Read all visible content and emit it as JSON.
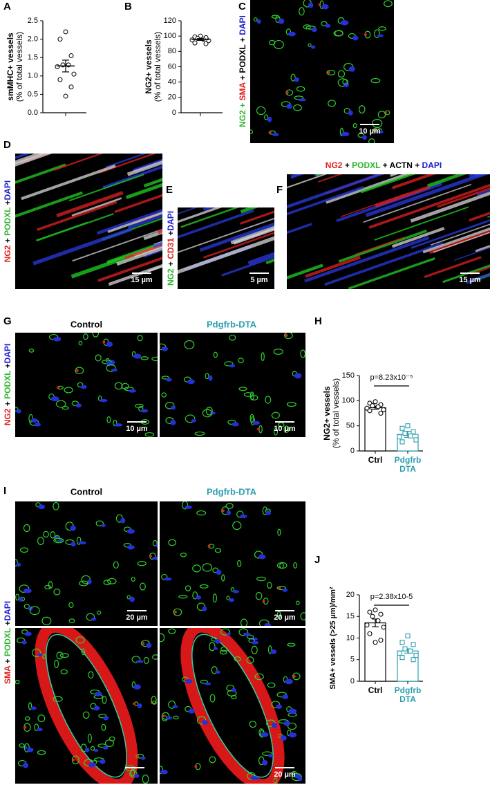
{
  "letters": [
    "A",
    "B",
    "C",
    "D",
    "E",
    "F",
    "G",
    "H",
    "I",
    "J"
  ],
  "chart_data": [
    {
      "type": "dot",
      "ylabel": [
        "smMHC+ vessels",
        "(% of total vessels)"
      ],
      "ylim": [
        0,
        2.5
      ],
      "yticks": [
        {
          "value": 0,
          "label": "0.0"
        },
        0.5,
        {
          "value": 1,
          "label": "1.0"
        },
        1.5,
        {
          "value": 2,
          "label": "2.0"
        },
        2.5
      ],
      "values": [
        2.2,
        2.0,
        1.55,
        1.3,
        1.3,
        1.25,
        1.05,
        0.9,
        0.7,
        0.45
      ],
      "mean": 1.27,
      "sem": 0.16,
      "color": "#000000"
    },
    {
      "type": "dot",
      "ylabel": [
        "NG2+ vessels",
        "(% of total vessels)"
      ],
      "ylim": [
        0,
        120
      ],
      "yticks": [
        0,
        20,
        40,
        60,
        80,
        100,
        120
      ],
      "values": [
        100,
        99,
        98,
        97,
        96,
        95,
        94,
        91,
        90
      ],
      "mean": 95.6,
      "sem": 1.2,
      "color": "#000000"
    },
    {
      "type": "bar",
      "ylabel": [
        "NG2+ vessels",
        "(% of total vessels)"
      ],
      "ylim": [
        0,
        150
      ],
      "yticks": [
        0,
        50,
        100,
        150
      ],
      "categories": [
        "Ctrl",
        "Pdgfrb DTA"
      ],
      "colors": [
        "#000000",
        "#2a9db0"
      ],
      "values": [
        86,
        33
      ],
      "sem": [
        3,
        6
      ],
      "points": [
        [
          98,
          95,
          92,
          90,
          88,
          85,
          82,
          80,
          75
        ],
        [
          50,
          45,
          38,
          35,
          30,
          28,
          22,
          18
        ]
      ],
      "annotation": "p=8.23x10⁻⁵"
    },
    {
      "type": "bar",
      "ylabel": "SMA+ vessels (>25 µm)/mm²",
      "ylim": [
        0,
        20
      ],
      "yticks": [
        0,
        5,
        10,
        15,
        20
      ],
      "categories": [
        "Ctrl",
        "Pdgfrb DTA"
      ],
      "colors": [
        "#000000",
        "#2a9db0"
      ],
      "values": [
        13.5,
        7
      ],
      "sem": [
        0.9,
        0.5
      ],
      "points": [
        [
          16.5,
          16,
          15.5,
          15,
          14,
          13,
          12.5,
          11,
          9.5,
          9
        ],
        [
          10.5,
          9,
          8.5,
          7.5,
          7,
          6.5,
          6,
          5.5,
          5
        ]
      ],
      "annotation": "p=2.38x10-5"
    }
  ],
  "images": [
    {
      "stain": [
        {
          "text": "NG2 + ",
          "color": "#2db52d"
        },
        {
          "text": "SMA",
          "color": "#e0201b"
        },
        {
          "text": " + PODXL + ",
          "color": "#000000"
        },
        {
          "text": "DAPI",
          "color": "#1a1ad0"
        }
      ],
      "scales": [
        "10 µm"
      ]
    },
    {
      "stain": [
        {
          "text": "NG2",
          "color": "#e0201b"
        },
        {
          "text": " + ",
          "color": "#000000"
        },
        {
          "text": "PODXL",
          "color": "#2db52d"
        },
        {
          "text": " +",
          "color": "#000000"
        },
        {
          "text": "DAPI",
          "color": "#1a1ad0"
        }
      ],
      "scales": [
        "15 µm"
      ]
    },
    {
      "stain": [
        {
          "text": "NG2",
          "color": "#2db52d"
        },
        {
          "text": " + ",
          "color": "#000000"
        },
        {
          "text": "CD31",
          "color": "#e0201b"
        },
        {
          "text": " +",
          "color": "#000000"
        },
        {
          "text": "DAPI",
          "color": "#1a1ad0"
        }
      ],
      "scales": [
        "5 µm"
      ]
    },
    {
      "stain": [
        {
          "text": "NG2",
          "color": "#e0201b"
        },
        {
          "text": " + ",
          "color": "#000000"
        },
        {
          "text": "PODXL",
          "color": "#2db52d"
        },
        {
          "text": " + ACTN + ",
          "color": "#000000"
        },
        {
          "text": "DAPI",
          "color": "#1a1ad0"
        }
      ],
      "scales": [
        "15 µm"
      ]
    },
    {
      "columns": [
        "Control",
        "Pdgfrb-DTA"
      ],
      "column_colors": [
        "#000000",
        "#2a9db0"
      ],
      "stain": [
        {
          "text": "NG2",
          "color": "#e0201b"
        },
        {
          "text": " + ",
          "color": "#000000"
        },
        {
          "text": "PODXL",
          "color": "#2db52d"
        },
        {
          "text": " +",
          "color": "#000000"
        },
        {
          "text": "DAPI",
          "color": "#1a1ad0"
        }
      ],
      "scales": [
        "10 µm",
        "10 µm"
      ]
    },
    {
      "columns": [
        "Control",
        "Pdgfrb-DTA"
      ],
      "column_colors": [
        "#000000",
        "#2a9db0"
      ],
      "stain": [
        {
          "text": "SMA",
          "color": "#e0201b"
        },
        {
          "text": " + ",
          "color": "#000000"
        },
        {
          "text": "PODXL",
          "color": "#2db52d"
        },
        {
          "text": " +",
          "color": "#000000"
        },
        {
          "text": "DAPI",
          "color": "#1a1ad0"
        }
      ],
      "scales": [
        "20 µm",
        "20 µm",
        "20 µm"
      ]
    }
  ]
}
